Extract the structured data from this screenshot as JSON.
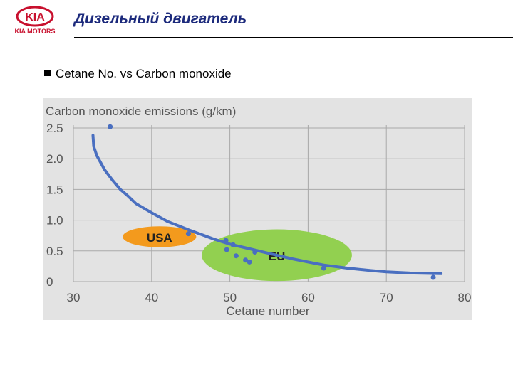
{
  "header": {
    "logo_text": "KIA",
    "logo_subtext": "KIA MOTORS",
    "title": "Дизельный двигатель"
  },
  "bullet": {
    "text": "Cetane No. vs Carbon monoxide"
  },
  "colors": {
    "title": "#1c2a7c",
    "logo": "#c8102e",
    "curve": "#4a6fc0",
    "usa": "#f39a1d",
    "eu": "#92d050",
    "grid": "#a9a9a9",
    "chart_bg": "#e3e3e3"
  },
  "chart_data": {
    "type": "scatter",
    "title": "Carbon monoxide emissions (g/km)",
    "xlabel": "Cetane number",
    "ylabel": "",
    "xlim": [
      30,
      80
    ],
    "ylim": [
      0,
      2.5
    ],
    "x_ticks": [
      30,
      40,
      50,
      60,
      70,
      80
    ],
    "y_ticks": [
      0,
      0.5,
      1.0,
      1.5,
      2.0,
      2.5
    ],
    "x_tick_labels": [
      "30",
      "40",
      "50",
      "60",
      "70",
      "80"
    ],
    "y_tick_labels": [
      "0",
      "0.5",
      "1.0",
      "1.5",
      "2.0",
      "2.5"
    ],
    "grid": true,
    "regions": [
      {
        "label": "USA",
        "cx": 41,
        "cy": 0.73,
        "rx": 4.7,
        "ry": 0.17
      },
      {
        "label": "EU",
        "cx": 56,
        "cy": 0.43,
        "rx": 9.6,
        "ry": 0.42
      }
    ],
    "series": [
      {
        "type": "line",
        "points": [
          [
            32.5,
            2.38
          ],
          [
            32.6,
            2.2
          ],
          [
            33,
            2.05
          ],
          [
            34,
            1.82
          ],
          [
            35,
            1.65
          ],
          [
            36,
            1.5
          ],
          [
            37,
            1.39
          ],
          [
            38,
            1.27
          ],
          [
            40,
            1.12
          ],
          [
            42,
            0.98
          ],
          [
            45,
            0.83
          ],
          [
            48,
            0.69
          ],
          [
            50,
            0.61
          ],
          [
            52,
            0.55
          ],
          [
            55,
            0.46
          ],
          [
            58,
            0.37
          ],
          [
            60,
            0.32
          ],
          [
            62,
            0.27
          ],
          [
            65,
            0.22
          ],
          [
            68,
            0.18
          ],
          [
            70,
            0.16
          ],
          [
            73,
            0.14
          ],
          [
            77,
            0.13
          ]
        ]
      },
      {
        "type": "scatter",
        "points": [
          [
            34.7,
            2.52
          ],
          [
            44.7,
            0.78
          ],
          [
            49.5,
            0.67
          ],
          [
            49.6,
            0.52
          ],
          [
            50.4,
            0.6
          ],
          [
            50.8,
            0.42
          ],
          [
            52,
            0.35
          ],
          [
            52.5,
            0.32
          ],
          [
            53.2,
            0.48
          ],
          [
            62,
            0.22
          ],
          [
            76,
            0.07
          ]
        ]
      }
    ]
  }
}
